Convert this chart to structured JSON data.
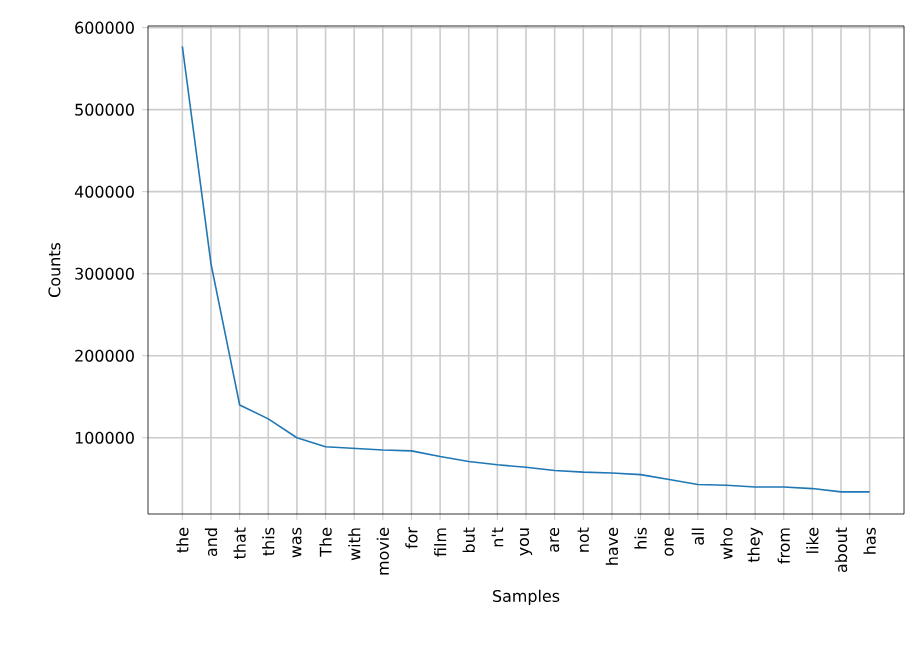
{
  "chart_data": {
    "type": "line",
    "xlabel": "Samples",
    "ylabel": "Counts",
    "categories": [
      "the",
      "and",
      "that",
      "this",
      "was",
      "The",
      "with",
      "movie",
      "for",
      "film",
      "but",
      "n't",
      "you",
      "are",
      "not",
      "have",
      "his",
      "one",
      "all",
      "who",
      "they",
      "from",
      "like",
      "about",
      "has"
    ],
    "series": [
      {
        "color": "#1f77b4",
        "values": [
          577000,
          312000,
          140000,
          123000,
          100000,
          89000,
          87000,
          85000,
          84000,
          77000,
          71000,
          67000,
          64000,
          60000,
          58000,
          57000,
          55000,
          49000,
          43000,
          42000,
          40000,
          40000,
          38000,
          34000,
          34000
        ]
      }
    ],
    "ylim": [
      7000,
      602000
    ],
    "yticks": [
      100000,
      200000,
      300000,
      400000,
      500000,
      600000
    ],
    "grid": true,
    "marker": "none",
    "line_style": "solid"
  }
}
